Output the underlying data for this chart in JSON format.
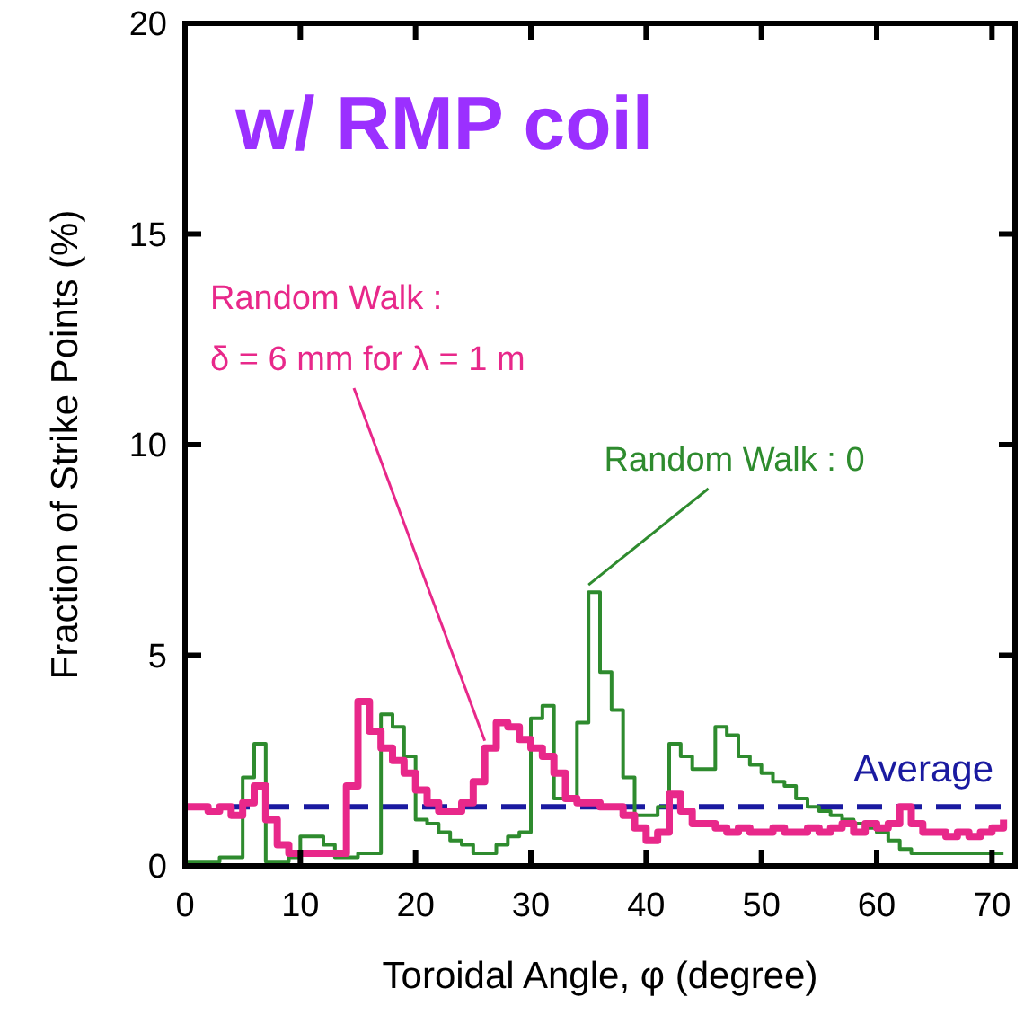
{
  "chart_data": {
    "type": "step",
    "title": "w/ RMP coil",
    "xlabel": "Toroidal Angle, φ (degree)",
    "ylabel": "Fraction of Strike Points (%)",
    "x": [
      0,
      1,
      2,
      3,
      4,
      5,
      6,
      7,
      8,
      9,
      10,
      11,
      12,
      13,
      14,
      15,
      16,
      17,
      18,
      19,
      20,
      21,
      22,
      23,
      24,
      25,
      26,
      27,
      28,
      29,
      30,
      31,
      32,
      33,
      34,
      35,
      36,
      37,
      38,
      39,
      40,
      41,
      42,
      43,
      44,
      45,
      46,
      47,
      48,
      49,
      50,
      51,
      52,
      53,
      54,
      55,
      56,
      57,
      58,
      59,
      60,
      61,
      62,
      63,
      64,
      65,
      66,
      67,
      68,
      69,
      70,
      71
    ],
    "series": [
      {
        "name": "Random Walk : 0",
        "color": "#2e8b2e",
        "values": [
          0.1,
          0.1,
          0.1,
          0.2,
          0.2,
          2.1,
          2.9,
          0.1,
          0.1,
          0.2,
          0.7,
          0.7,
          0.5,
          0.2,
          0.2,
          0.3,
          0.3,
          3.6,
          3.3,
          2.6,
          1.1,
          1.0,
          0.8,
          0.6,
          0.5,
          0.3,
          0.3,
          0.5,
          0.7,
          0.8,
          3.5,
          3.8,
          1.6,
          1.6,
          3.4,
          6.5,
          4.6,
          3.7,
          2.1,
          1.2,
          1.2,
          1.4,
          2.9,
          2.6,
          2.3,
          2.3,
          3.3,
          3.1,
          2.6,
          2.4,
          2.2,
          2.0,
          1.9,
          1.6,
          1.4,
          1.3,
          1.2,
          1.1,
          1.0,
          0.9,
          0.8,
          0.6,
          0.4,
          0.3,
          0.3,
          0.3,
          0.3,
          0.3,
          0.3,
          0.3,
          0.3,
          0.3
        ]
      },
      {
        "name": "Random Walk :\nδ = 6 mm for λ = 1 m",
        "color": "#e8288a",
        "values": [
          1.4,
          1.4,
          1.3,
          1.4,
          1.2,
          1.5,
          1.9,
          1.1,
          0.5,
          0.3,
          0.3,
          0.3,
          0.3,
          0.3,
          1.9,
          3.9,
          3.2,
          2.8,
          2.5,
          2.2,
          1.8,
          1.5,
          1.3,
          1.3,
          1.5,
          2.0,
          2.8,
          3.4,
          3.3,
          3.0,
          2.8,
          2.6,
          2.2,
          1.6,
          1.5,
          1.5,
          1.4,
          1.4,
          1.2,
          0.9,
          0.6,
          0.8,
          1.7,
          1.3,
          1.0,
          1.0,
          0.9,
          0.8,
          0.9,
          0.8,
          0.8,
          0.9,
          0.8,
          0.8,
          0.9,
          0.8,
          0.9,
          1.0,
          0.8,
          1.0,
          0.9,
          1.0,
          1.4,
          1.0,
          0.8,
          0.8,
          0.7,
          0.8,
          0.7,
          0.8,
          0.9,
          1.1
        ]
      }
    ],
    "ref_lines": [
      {
        "axis": "y",
        "value": 1.4,
        "label": "Average",
        "color": "#1a1aa0",
        "line_style": "dashed"
      }
    ],
    "xlim": [
      0,
      72
    ],
    "xticks": [
      0,
      10,
      20,
      30,
      40,
      50,
      60,
      70
    ],
    "ylim": [
      0,
      20
    ],
    "yticks": [
      0,
      5,
      10,
      15,
      20
    ]
  }
}
